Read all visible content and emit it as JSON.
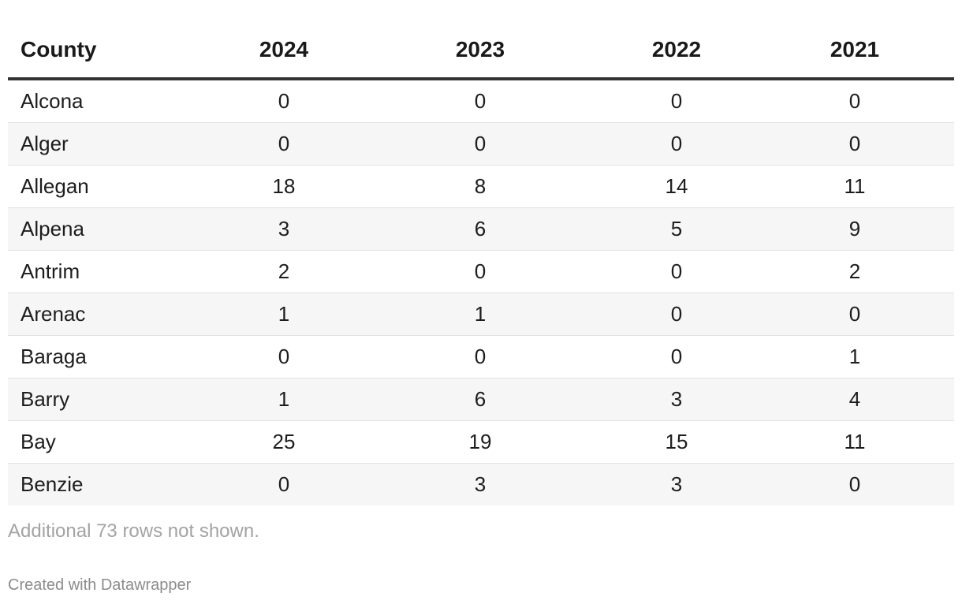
{
  "chart_data": {
    "type": "table",
    "columns": [
      "County",
      "2024",
      "2023",
      "2022",
      "2021"
    ],
    "rows": [
      [
        "Alcona",
        "0",
        "0",
        "0",
        "0"
      ],
      [
        "Alger",
        "0",
        "0",
        "0",
        "0"
      ],
      [
        "Allegan",
        "18",
        "8",
        "14",
        "11"
      ],
      [
        "Alpena",
        "3",
        "6",
        "5",
        "9"
      ],
      [
        "Antrim",
        "2",
        "0",
        "0",
        "2"
      ],
      [
        "Arenac",
        "1",
        "1",
        "0",
        "0"
      ],
      [
        "Baraga",
        "0",
        "0",
        "0",
        "1"
      ],
      [
        "Barry",
        "1",
        "6",
        "3",
        "4"
      ],
      [
        "Bay",
        "25",
        "19",
        "15",
        "11"
      ],
      [
        "Benzie",
        "0",
        "3",
        "3",
        "0"
      ]
    ]
  },
  "footer": {
    "note": "Additional 73 rows not shown.",
    "credit": "Created with Datawrapper"
  }
}
